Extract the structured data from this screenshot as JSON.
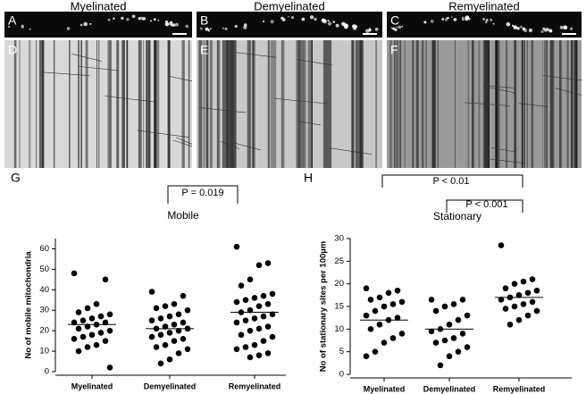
{
  "figure": {
    "columns": [
      "Myelinated",
      "Demyelinated",
      "Remyelinated"
    ],
    "panel_labels": [
      "A",
      "B",
      "C",
      "D",
      "E",
      "F"
    ]
  },
  "chart_data": [
    {
      "type": "strip",
      "panel_label": "G",
      "title": "Mobile",
      "ylabel": "No of mobile mitochondria",
      "categories": [
        "Myelinated",
        "Demyelinated",
        "Remyelinated"
      ],
      "color": "#000000",
      "ylim": [
        0,
        65
      ],
      "yticks": [
        0,
        10,
        20,
        30,
        40,
        50,
        60
      ],
      "groups": [
        {
          "values": [
            48,
            45,
            33,
            31,
            29,
            28,
            27,
            26,
            25,
            24,
            24,
            23,
            22,
            21,
            20,
            19,
            18,
            17,
            16,
            15,
            13,
            12,
            10,
            2
          ],
          "mean": 23
        },
        {
          "values": [
            39,
            37,
            33,
            32,
            31,
            30,
            28,
            27,
            26,
            25,
            24,
            23,
            22,
            21,
            21,
            20,
            19,
            18,
            17,
            16,
            15,
            13,
            12,
            11,
            9,
            6,
            4
          ],
          "mean": 21
        },
        {
          "values": [
            61,
            53,
            52,
            45,
            42,
            38,
            37,
            36,
            35,
            34,
            33,
            32,
            30,
            29,
            28,
            27,
            26,
            25,
            24,
            22,
            21,
            20,
            18,
            17,
            15,
            13,
            12,
            11,
            9,
            8,
            7
          ],
          "mean": 29
        }
      ],
      "annotations": [
        "P = 0.019"
      ]
    },
    {
      "type": "strip",
      "panel_label": "H",
      "title": "Stationary",
      "ylabel": "No of stationary sites per 100µm",
      "categories": [
        "Myelinated",
        "Demyelinated",
        "Remyelinated"
      ],
      "color": "#000000",
      "ylim": [
        0,
        30
      ],
      "yticks": [
        0,
        5,
        10,
        15,
        20,
        25,
        30
      ],
      "groups": [
        {
          "values": [
            19,
            18.5,
            18,
            17,
            16.5,
            16,
            15.5,
            15,
            14,
            13,
            12.5,
            12,
            11,
            10,
            9,
            8,
            7,
            5,
            4
          ],
          "mean": 12
        },
        {
          "values": [
            16.5,
            16.5,
            15.5,
            15,
            14,
            13,
            12,
            11,
            10,
            9.5,
            9,
            8,
            7.5,
            7,
            6,
            5,
            4,
            2
          ],
          "mean": 10
        },
        {
          "values": [
            28.5,
            21,
            20.5,
            20,
            19,
            18.5,
            18,
            17.5,
            17,
            16.5,
            16,
            15.5,
            15,
            14.5,
            14,
            13,
            12,
            11
          ],
          "mean": 17
        }
      ],
      "annotations": [
        "P < 0.01",
        "P < 0.001"
      ]
    }
  ]
}
